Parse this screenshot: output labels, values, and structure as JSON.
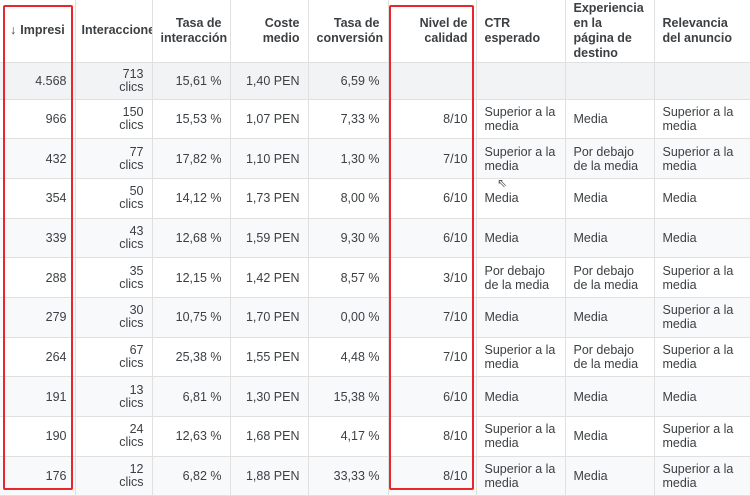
{
  "headers": {
    "impressions": "Impresi",
    "interactions": "Interaccione",
    "interaction_rate": "Tasa de interacción",
    "avg_cost": "Coste medio",
    "conversion_rate": "Tasa de conversión",
    "quality_score": "Nivel de calidad",
    "expected_ctr": "CTR esperado",
    "landing_page_exp": "Experiencia en la página de destino",
    "ad_relevance": "Relevancia del anuncio"
  },
  "sort_arrow": "↓",
  "total": {
    "impressions": "4.568",
    "interactions": "713",
    "interactions_unit": "clics",
    "interaction_rate": "15,61 %",
    "avg_cost": "1,40 PEN",
    "conversion_rate": "6,59 %",
    "quality_score": "",
    "expected_ctr": "",
    "landing_page_exp": "",
    "ad_relevance": ""
  },
  "rows": [
    {
      "impressions": "966",
      "interactions": "150",
      "interactions_unit": "clics",
      "interaction_rate": "15,53 %",
      "avg_cost": "1,07 PEN",
      "conversion_rate": "7,33 %",
      "quality_score": "8/10",
      "expected_ctr": "Superior a la media",
      "landing_page_exp": "Media",
      "ad_relevance": "Superior a la media"
    },
    {
      "impressions": "432",
      "interactions": "77",
      "interactions_unit": "clics",
      "interaction_rate": "17,82 %",
      "avg_cost": "1,10 PEN",
      "conversion_rate": "1,30 %",
      "quality_score": "7/10",
      "expected_ctr": "Superior a la media",
      "landing_page_exp": "Por debajo de la media",
      "ad_relevance": "Superior a la media"
    },
    {
      "impressions": "354",
      "interactions": "50",
      "interactions_unit": "clics",
      "interaction_rate": "14,12 %",
      "avg_cost": "1,73 PEN",
      "conversion_rate": "8,00 %",
      "quality_score": "6/10",
      "expected_ctr": "Media",
      "landing_page_exp": "Media",
      "ad_relevance": "Media"
    },
    {
      "impressions": "339",
      "interactions": "43",
      "interactions_unit": "clics",
      "interaction_rate": "12,68 %",
      "avg_cost": "1,59 PEN",
      "conversion_rate": "9,30 %",
      "quality_score": "6/10",
      "expected_ctr": "Media",
      "landing_page_exp": "Media",
      "ad_relevance": "Media"
    },
    {
      "impressions": "288",
      "interactions": "35",
      "interactions_unit": "clics",
      "interaction_rate": "12,15 %",
      "avg_cost": "1,42 PEN",
      "conversion_rate": "8,57 %",
      "quality_score": "3/10",
      "expected_ctr": "Por debajo de la media",
      "landing_page_exp": "Por debajo de la media",
      "ad_relevance": "Superior a la media"
    },
    {
      "impressions": "279",
      "interactions": "30",
      "interactions_unit": "clics",
      "interaction_rate": "10,75 %",
      "avg_cost": "1,70 PEN",
      "conversion_rate": "0,00 %",
      "quality_score": "7/10",
      "expected_ctr": "Media",
      "landing_page_exp": "Media",
      "ad_relevance": "Superior a la media"
    },
    {
      "impressions": "264",
      "interactions": "67",
      "interactions_unit": "clics",
      "interaction_rate": "25,38 %",
      "avg_cost": "1,55 PEN",
      "conversion_rate": "4,48 %",
      "quality_score": "7/10",
      "expected_ctr": "Superior a la media",
      "landing_page_exp": "Por debajo de la media",
      "ad_relevance": "Superior a la media"
    },
    {
      "impressions": "191",
      "interactions": "13",
      "interactions_unit": "clics",
      "interaction_rate": "6,81 %",
      "avg_cost": "1,30 PEN",
      "conversion_rate": "15,38 %",
      "quality_score": "6/10",
      "expected_ctr": "Media",
      "landing_page_exp": "Media",
      "ad_relevance": "Media"
    },
    {
      "impressions": "190",
      "interactions": "24",
      "interactions_unit": "clics",
      "interaction_rate": "12,63 %",
      "avg_cost": "1,68 PEN",
      "conversion_rate": "4,17 %",
      "quality_score": "8/10",
      "expected_ctr": "Superior a la media",
      "landing_page_exp": "Media",
      "ad_relevance": "Superior a la media"
    },
    {
      "impressions": "176",
      "interactions": "12",
      "interactions_unit": "clics",
      "interaction_rate": "6,82 %",
      "avg_cost": "1,88 PEN",
      "conversion_rate": "33,33 %",
      "quality_score": "8/10",
      "expected_ctr": "Superior a la media",
      "landing_page_exp": "Media",
      "ad_relevance": "Superior a la media"
    }
  ],
  "highlight_color": "#e8262c"
}
